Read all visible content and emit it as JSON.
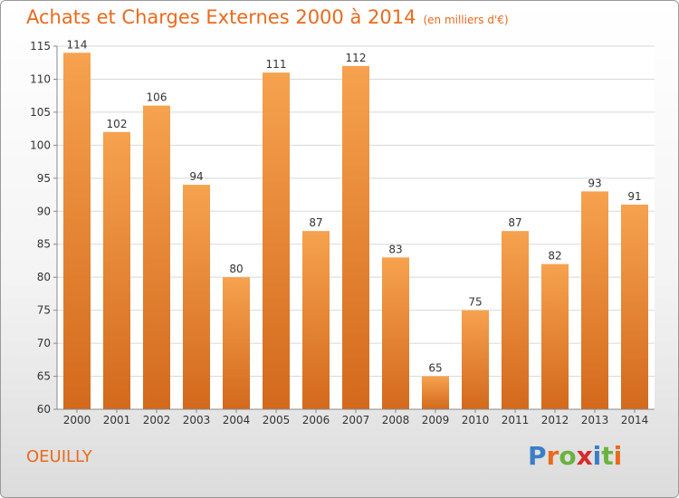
{
  "header": {
    "title": "Achats et Charges Externes 2000 à 2014",
    "subtitle": "(en milliers d'€)"
  },
  "footer": {
    "city": "OEUILLY",
    "logo": "Proxiti"
  },
  "colors": {
    "bar_light": "#f6a24e",
    "bar_dark": "#d3691c",
    "accent": "#ea6a1c",
    "logo_letters": [
      "#3a7fc6",
      "#ea6a1c",
      "#6ab33e",
      "#d62a2a",
      "#3a7fc6",
      "#6ab33e",
      "#ea6a1c"
    ]
  },
  "chart_data": {
    "type": "bar",
    "title": "Achats et Charges Externes 2000 à 2014",
    "subtitle": "(en milliers d'€)",
    "categories": [
      "2000",
      "2001",
      "2002",
      "2003",
      "2004",
      "2005",
      "2006",
      "2007",
      "2008",
      "2009",
      "2010",
      "2011",
      "2012",
      "2013",
      "2014"
    ],
    "values": [
      114,
      102,
      106,
      94,
      80,
      111,
      87,
      112,
      83,
      65,
      75,
      87,
      82,
      93,
      91
    ],
    "ylim": [
      60,
      115
    ],
    "yticks": [
      60,
      65,
      70,
      75,
      80,
      85,
      90,
      95,
      100,
      105,
      110,
      115
    ],
    "grid": true,
    "legend": "none"
  }
}
